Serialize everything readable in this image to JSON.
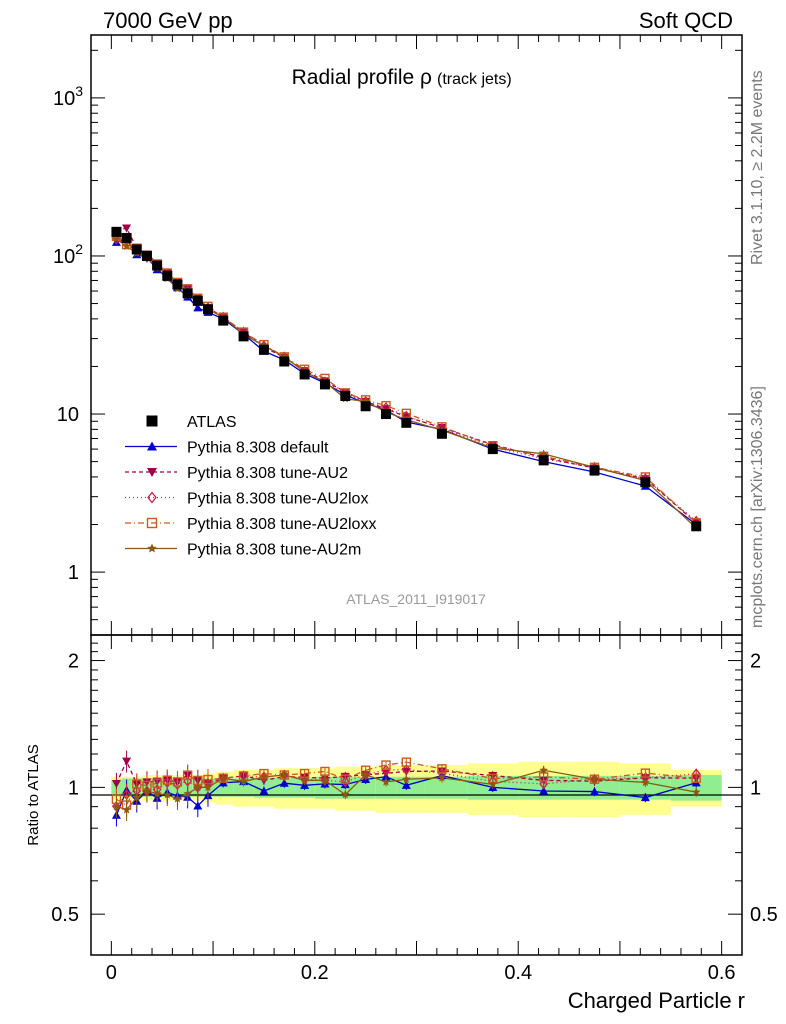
{
  "header": {
    "left_label": "7000 GeV pp",
    "right_label": "Soft QCD"
  },
  "side": {
    "rivet_label": "Rivet 3.1.10, ≥ 2.2M events",
    "mcplots_label": "mcplots.cern.ch [arXiv:1306.3436]"
  },
  "chart_data": {
    "type": "line",
    "title_main": "Radial profile ρ",
    "title_sub": "(track jets)",
    "analysis_id": "ATLAS_2011_I919017",
    "xlabel": "Charged Particle r",
    "ylabel_ratio": "Ratio to ATLAS",
    "x_ticks": [
      "0",
      "0.2",
      "0.4",
      "0.6"
    ],
    "xlim": [
      -0.02,
      0.62
    ],
    "ylim_main": [
      0.4,
      2500
    ],
    "yscale_main": "log",
    "ylim_ratio": [
      0.4,
      2.3
    ],
    "yscale_ratio": "log",
    "main_y_tick_labels": [
      "1",
      "10",
      "10^2",
      "10^3"
    ],
    "ratio_y_tick_labels": [
      "0.5",
      "1",
      "2"
    ],
    "x": [
      0.005,
      0.015,
      0.025,
      0.035,
      0.045,
      0.055,
      0.065,
      0.075,
      0.085,
      0.095,
      0.11,
      0.13,
      0.15,
      0.17,
      0.19,
      0.21,
      0.23,
      0.25,
      0.27,
      0.29,
      0.325,
      0.375,
      0.425,
      0.475,
      0.525,
      0.575
    ],
    "data": {
      "name": "ATLAS",
      "color": "#000000",
      "values": [
        142,
        130,
        110,
        100,
        87,
        75,
        66,
        58,
        52,
        46,
        39,
        31,
        25.5,
        21.5,
        17.8,
        15.4,
        13,
        11.2,
        10,
        8.8,
        7.5,
        6,
        5.1,
        4.4,
        3.7,
        1.95
      ]
    },
    "series": [
      {
        "name": "Pythia 8.308 default",
        "color": "#0000cc",
        "dash": "",
        "marker": "triangle-up",
        "values": [
          122,
          128,
          102,
          98,
          82,
          73,
          63,
          55,
          47,
          44,
          40,
          32,
          25,
          22,
          18,
          15.7,
          13.2,
          11.7,
          10.6,
          8.9,
          8,
          6,
          5,
          4.3,
          3.5,
          2
        ]
      },
      {
        "name": "Pythia 8.308 tune-AU2",
        "color": "#a0004a",
        "dash": "4,3",
        "marker": "triangle-down",
        "values": [
          145,
          150,
          112,
          103,
          90,
          78,
          68,
          62,
          54,
          47,
          41,
          33,
          26.5,
          22.8,
          18.8,
          16.2,
          13.8,
          12,
          10.8,
          9.6,
          8.2,
          6.4,
          5.3,
          4.55,
          3.9,
          2.05
        ]
      },
      {
        "name": "Pythia 8.308 tune-AU2lox",
        "color": "#c8204a",
        "dash": "1,3",
        "marker": "diamond",
        "values": [
          128,
          125,
          108,
          98,
          86,
          77,
          67,
          60,
          52,
          47,
          41,
          33,
          27,
          23,
          18.6,
          16,
          13.4,
          12,
          11,
          9.7,
          8.1,
          6.2,
          5.2,
          4.6,
          3.9,
          2.1
        ]
      },
      {
        "name": "Pythia 8.308 tune-AU2loxx",
        "color": "#cc5a20",
        "dash": "6,3,1,3",
        "marker": "square-open",
        "values": [
          133,
          118,
          112,
          101,
          89,
          78,
          68,
          62,
          54,
          48,
          41,
          33,
          27.5,
          23,
          19.2,
          16.8,
          13.6,
          12.3,
          11.3,
          10.1,
          8.3,
          6.3,
          5.4,
          4.6,
          4,
          2.05
        ]
      },
      {
        "name": "Pythia 8.308 tune-AU2m",
        "color": "#8b5a10",
        "dash": "",
        "marker": "star",
        "values": [
          128,
          115,
          104,
          98,
          84,
          72,
          62,
          56,
          52,
          46,
          41,
          32,
          27,
          23,
          18.5,
          16,
          12.5,
          12,
          10.3,
          9.2,
          7.9,
          6.1,
          5.6,
          4.6,
          3.8,
          1.9
        ]
      }
    ],
    "error_band": {
      "inner_color": "#90ee90",
      "outer_color": "#ffff90",
      "inner_half_width": [
        0.04,
        0.05,
        0.05,
        0.05,
        0.05,
        0.05,
        0.05,
        0.05,
        0.05,
        0.05,
        0.05,
        0.05,
        0.055,
        0.055,
        0.055,
        0.06,
        0.06,
        0.06,
        0.06,
        0.06,
        0.06,
        0.065,
        0.065,
        0.065,
        0.065,
        0.07
      ],
      "outer_half_width": [
        0.06,
        0.06,
        0.06,
        0.07,
        0.07,
        0.07,
        0.07,
        0.07,
        0.07,
        0.08,
        0.09,
        0.1,
        0.1,
        0.11,
        0.11,
        0.11,
        0.12,
        0.12,
        0.13,
        0.13,
        0.13,
        0.14,
        0.15,
        0.15,
        0.14,
        0.1
      ]
    }
  }
}
